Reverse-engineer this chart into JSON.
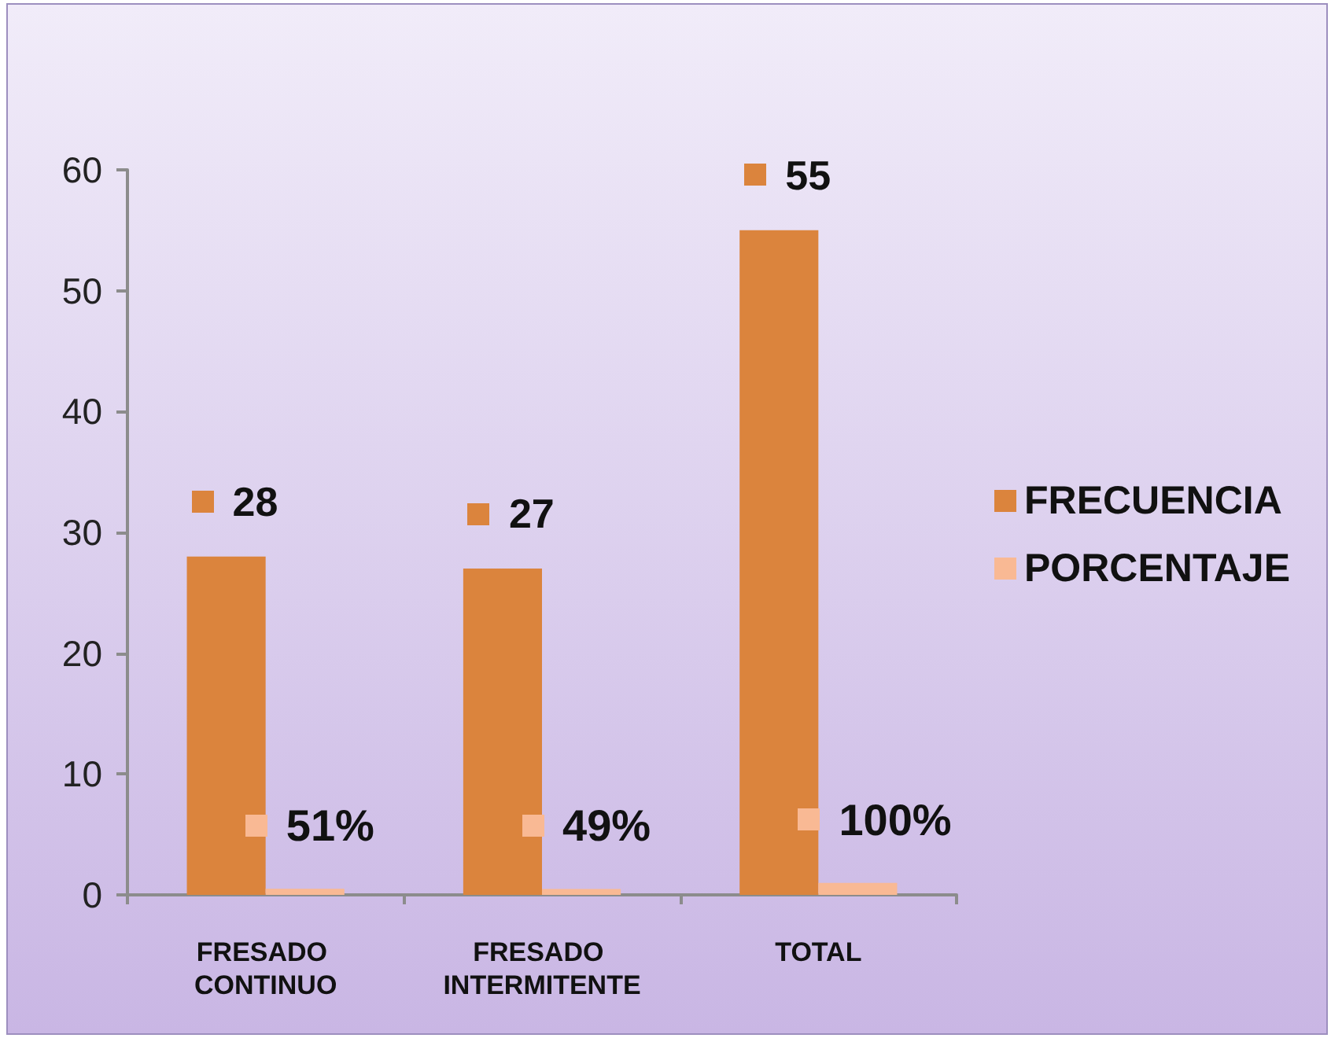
{
  "chart_data": {
    "type": "bar",
    "categories": [
      "FRESADO CONTINUO",
      "FRESADO INTERMITENTE",
      "TOTAL"
    ],
    "series": [
      {
        "name": "FRECUENCIA",
        "color": "#db843d",
        "values": [
          28,
          27,
          55
        ],
        "value_labels": [
          "28",
          "27",
          "55"
        ]
      },
      {
        "name": "PORCENTAJE",
        "color": "#f9b994",
        "values": [
          0.51,
          0.49,
          1
        ],
        "value_labels": [
          "51%",
          "49%",
          "100%"
        ]
      }
    ],
    "ylim": [
      0,
      60
    ],
    "yticks": [
      0,
      10,
      20,
      30,
      40,
      50,
      60
    ],
    "grid": false,
    "legend": "right"
  }
}
